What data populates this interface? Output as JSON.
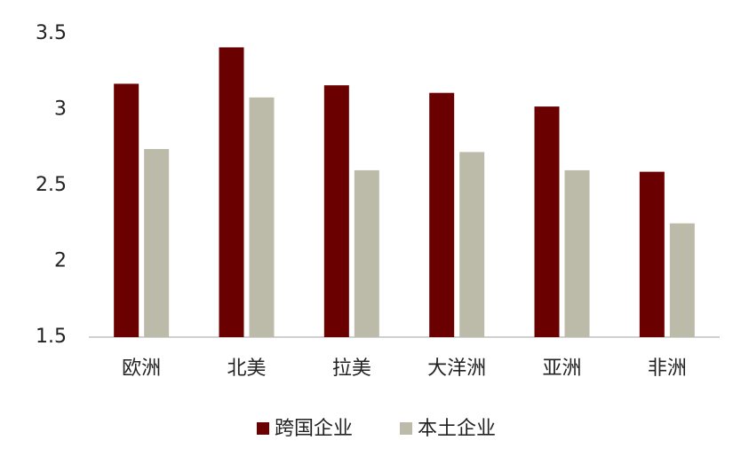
{
  "chart_data": {
    "type": "bar",
    "categories": [
      "欧洲",
      "北美",
      "拉美",
      "大洋洲",
      "亚洲",
      "非洲"
    ],
    "series": [
      {
        "name": "跨国企业",
        "color": "#6b0000",
        "values": [
          3.17,
          3.41,
          3.16,
          3.11,
          3.02,
          2.59
        ]
      },
      {
        "name": "本土企业",
        "color": "#bcbaa8",
        "values": [
          2.74,
          3.08,
          2.6,
          2.72,
          2.6,
          2.25
        ]
      }
    ],
    "ylim": [
      1.5,
      3.5
    ],
    "yticks": [
      1.5,
      2,
      2.5,
      3,
      3.5
    ],
    "grid": false,
    "legend": "bottom"
  }
}
